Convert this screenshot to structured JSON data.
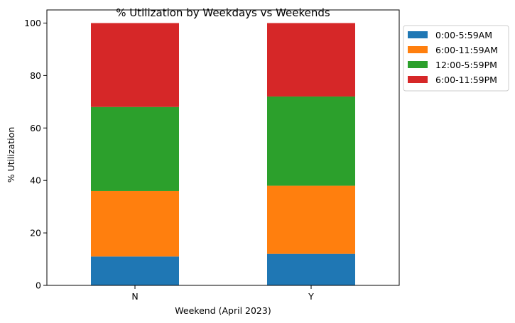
{
  "chart_data": {
    "type": "bar",
    "stacked": true,
    "title": "% Utilization by Weekdays vs Weekends",
    "xlabel": "Weekend (April 2023)",
    "ylabel": "% Utilization",
    "categories": [
      "N",
      "Y"
    ],
    "ylim": [
      0,
      105
    ],
    "yticks": [
      0,
      20,
      40,
      60,
      80,
      100
    ],
    "grid": false,
    "legend_position": "outside-top-right",
    "series": [
      {
        "name": "0:00-5:59AM",
        "color": "#1f77b4",
        "values": [
          11,
          12
        ]
      },
      {
        "name": "6:00-11:59AM",
        "color": "#ff7f0e",
        "values": [
          25,
          26
        ]
      },
      {
        "name": "12:00-5:59PM",
        "color": "#2ca02c",
        "values": [
          32,
          34
        ]
      },
      {
        "name": "6:00-11:59PM",
        "color": "#d62728",
        "values": [
          32,
          28
        ]
      }
    ]
  }
}
